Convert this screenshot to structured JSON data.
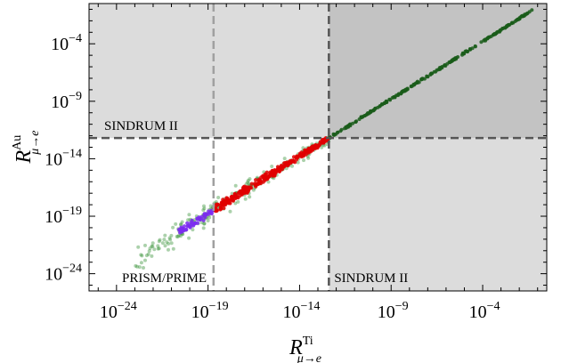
{
  "chart_data": {
    "type": "scatter",
    "x_scale": "log10",
    "y_scale": "log10",
    "xlim_exp": [
      -25.5,
      -0.5
    ],
    "ylim_exp": [
      -25.5,
      -0.5
    ],
    "x_ticks": [
      {
        "base": "10",
        "exp": "−24",
        "value": -24
      },
      {
        "base": "10",
        "exp": "−19",
        "value": -19
      },
      {
        "base": "10",
        "exp": "−14",
        "value": -14
      },
      {
        "base": "10",
        "exp": "−9",
        "value": -9
      },
      {
        "base": "10",
        "exp": "−4",
        "value": -4
      }
    ],
    "y_ticks": [
      {
        "base": "10",
        "exp": "−24",
        "value": -24
      },
      {
        "base": "10",
        "exp": "−19",
        "value": -19
      },
      {
        "base": "10",
        "exp": "−14",
        "value": -14
      },
      {
        "base": "10",
        "exp": "−9",
        "value": -9
      },
      {
        "base": "10",
        "exp": "−4",
        "value": -4
      }
    ],
    "xlabel": {
      "main": "R",
      "sup": "Ti",
      "sub": "μ→e"
    },
    "ylabel": {
      "main": "R",
      "sup": "Au",
      "sub": "μ→e"
    },
    "bounds": {
      "sindrum_ii_ti_exp": -12.4,
      "sindrum_ii_au_exp": -12.2,
      "prism_prime_ti_exp": -18.7
    },
    "annotations": {
      "sindrum_au": "SINDRUM II",
      "sindrum_ti": "SINDRUM II",
      "prism": "PRISM/PRIME"
    },
    "colors": {
      "excluded_light": "#dcdcdc",
      "excluded_dark": "#c3c3c3",
      "points_green": "#2e8b2e",
      "points_dark_green": "#1a5c1a",
      "points_red": "#e00000",
      "points_purple": "#7b2cf0",
      "bound_dark": "#555555",
      "bound_light": "#a0a0a0"
    },
    "series": [
      {
        "color": "green",
        "x_range_exp": [
          -23,
          -1.2
        ],
        "relation": "log10(Au) ≈ log10(Ti) + 0.2"
      },
      {
        "color": "red",
        "x_range_exp": [
          -18.7,
          -12.4
        ]
      },
      {
        "color": "purple",
        "x_range_exp": [
          -20.6,
          -18.7
        ]
      }
    ]
  }
}
